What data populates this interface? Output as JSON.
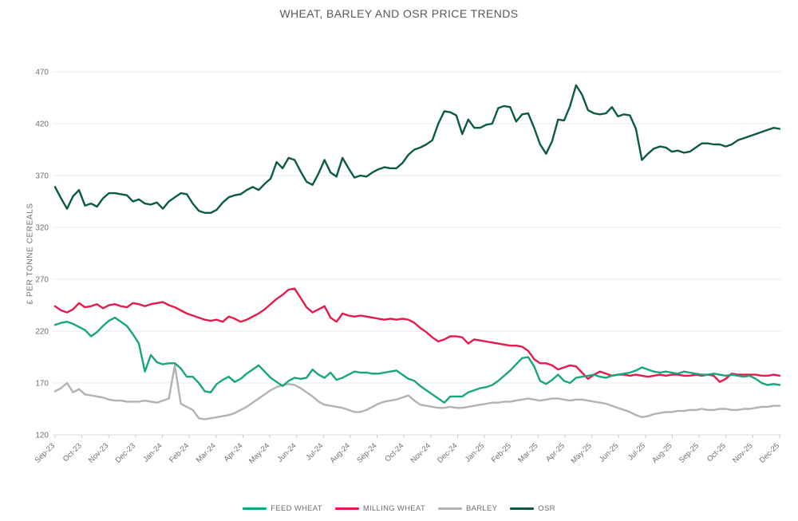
{
  "title": "WHEAT, BARLEY AND OSR PRICE TRENDS",
  "chart_data": {
    "type": "line",
    "title": "WHEAT, BARLEY AND OSR PRICE TRENDS",
    "xlabel": "",
    "ylabel": "£ PER TONNE CEREALS",
    "ylim": [
      120,
      470
    ],
    "ytick_step": 50,
    "yticks": [
      120,
      170,
      220,
      270,
      320,
      370,
      420,
      470
    ],
    "grid": "horizontal",
    "legend_position": "bottom",
    "x_tick_labels": [
      "Sep-23",
      "Oct-23",
      "Nov-23",
      "Dec-23",
      "Jan-24",
      "Feb-24",
      "Mar-24",
      "Apr-24",
      "May-24",
      "Jun-24",
      "Jul-24",
      "Aug-24",
      "Sep-24",
      "Oct-24",
      "Nov-24",
      "Dec-24",
      "Jan-25",
      "Feb-25",
      "Mar-25",
      "Apr-25",
      "May-25",
      "Jun-25",
      "Jul-25",
      "Aug-25",
      "Sep-25",
      "Oct-25",
      "Nov-25",
      "Dec-25"
    ],
    "x_resolution": "weekly",
    "series": [
      {
        "name": "FEED WHEAT",
        "color": "#17a57e",
        "values": [
          226,
          228,
          229,
          227,
          224,
          221,
          215,
          219,
          225,
          230,
          233,
          229,
          225,
          217,
          208,
          181,
          197,
          190,
          188,
          189,
          189,
          184,
          176,
          176,
          170,
          162,
          161,
          169,
          173,
          176,
          171,
          174,
          179,
          183,
          187,
          181,
          175,
          171,
          167,
          172,
          175,
          174,
          175,
          183,
          178,
          175,
          180,
          173,
          175,
          178,
          181,
          180,
          180,
          179,
          179,
          180,
          181,
          182,
          178,
          174,
          172,
          167,
          163,
          159,
          155,
          151,
          157,
          157,
          157,
          161,
          163,
          165,
          166,
          168,
          172,
          177,
          182,
          188,
          194,
          195,
          186,
          172,
          169,
          173,
          178,
          172,
          170,
          175,
          176,
          177,
          178,
          176,
          175,
          177,
          178,
          179,
          180,
          182,
          185,
          183,
          181,
          180,
          181,
          180,
          179,
          181,
          180,
          179,
          178,
          178,
          179,
          178,
          177,
          178,
          177,
          176,
          177,
          174,
          170,
          168,
          169,
          168
        ]
      },
      {
        "name": "MILLING WHEAT",
        "color": "#e8184a",
        "values": [
          244,
          240,
          238,
          241,
          247,
          243,
          244,
          246,
          242,
          245,
          246,
          244,
          243,
          247,
          246,
          244,
          246,
          247,
          248,
          245,
          243,
          240,
          237,
          235,
          233,
          231,
          230,
          231,
          229,
          234,
          232,
          229,
          231,
          234,
          237,
          241,
          246,
          251,
          255,
          260,
          261,
          252,
          243,
          238,
          241,
          244,
          233,
          229,
          237,
          235,
          234,
          235,
          234,
          233,
          232,
          231,
          232,
          231,
          232,
          231,
          228,
          223,
          219,
          214,
          210,
          212,
          215,
          215,
          214,
          208,
          212,
          211,
          210,
          209,
          208,
          207,
          206,
          206,
          205,
          201,
          193,
          189,
          189,
          187,
          183,
          185,
          187,
          186,
          180,
          174,
          178,
          181,
          179,
          177,
          178,
          178,
          177,
          178,
          177,
          176,
          177,
          178,
          177,
          178,
          178,
          177,
          177,
          178,
          177,
          178,
          177,
          171,
          174,
          179,
          178,
          178,
          178,
          178,
          177,
          177,
          178,
          177
        ]
      },
      {
        "name": "BARLEY",
        "color": "#b2b2b4",
        "values": [
          162,
          165,
          170,
          161,
          164,
          159,
          158,
          157,
          156,
          154,
          153,
          153,
          152,
          152,
          152,
          153,
          152,
          151,
          153,
          155,
          187,
          150,
          147,
          144,
          136,
          135,
          136,
          137,
          138,
          139,
          141,
          144,
          147,
          151,
          155,
          159,
          163,
          166,
          168,
          169,
          168,
          165,
          161,
          157,
          152,
          149,
          148,
          147,
          146,
          144,
          142,
          142,
          144,
          147,
          150,
          152,
          153,
          154,
          156,
          158,
          153,
          149,
          148,
          147,
          146,
          146,
          147,
          146,
          146,
          147,
          148,
          149,
          150,
          151,
          151,
          152,
          152,
          153,
          154,
          155,
          154,
          153,
          154,
          155,
          155,
          154,
          153,
          154,
          154,
          153,
          152,
          151,
          150,
          148,
          146,
          144,
          142,
          139,
          137,
          138,
          140,
          141,
          142,
          142,
          143,
          143,
          144,
          144,
          145,
          144,
          144,
          145,
          145,
          144,
          144,
          145,
          145,
          146,
          147,
          147,
          148,
          148
        ]
      },
      {
        "name": "OSR",
        "color": "#0b5c3c",
        "values": [
          359,
          348,
          338,
          350,
          356,
          341,
          343,
          340,
          348,
          353,
          353,
          352,
          351,
          345,
          347,
          343,
          342,
          344,
          338,
          345,
          349,
          353,
          352,
          343,
          336,
          334,
          334,
          337,
          344,
          349,
          351,
          352,
          356,
          359,
          356,
          362,
          367,
          383,
          377,
          387,
          385,
          374,
          364,
          361,
          372,
          385,
          373,
          369,
          387,
          377,
          368,
          370,
          369,
          373,
          376,
          378,
          377,
          377,
          382,
          390,
          395,
          397,
          400,
          404,
          420,
          432,
          431,
          428,
          410,
          424,
          416,
          416,
          419,
          420,
          435,
          437,
          436,
          422,
          429,
          430,
          416,
          400,
          391,
          403,
          424,
          423,
          437,
          457,
          448,
          433,
          430,
          429,
          430,
          436,
          427,
          429,
          428,
          415,
          385,
          391,
          396,
          398,
          397,
          393,
          394,
          392,
          393,
          397,
          401,
          401,
          400,
          400,
          398,
          400,
          404,
          406,
          408,
          410,
          412,
          414,
          416,
          415
        ]
      }
    ]
  }
}
